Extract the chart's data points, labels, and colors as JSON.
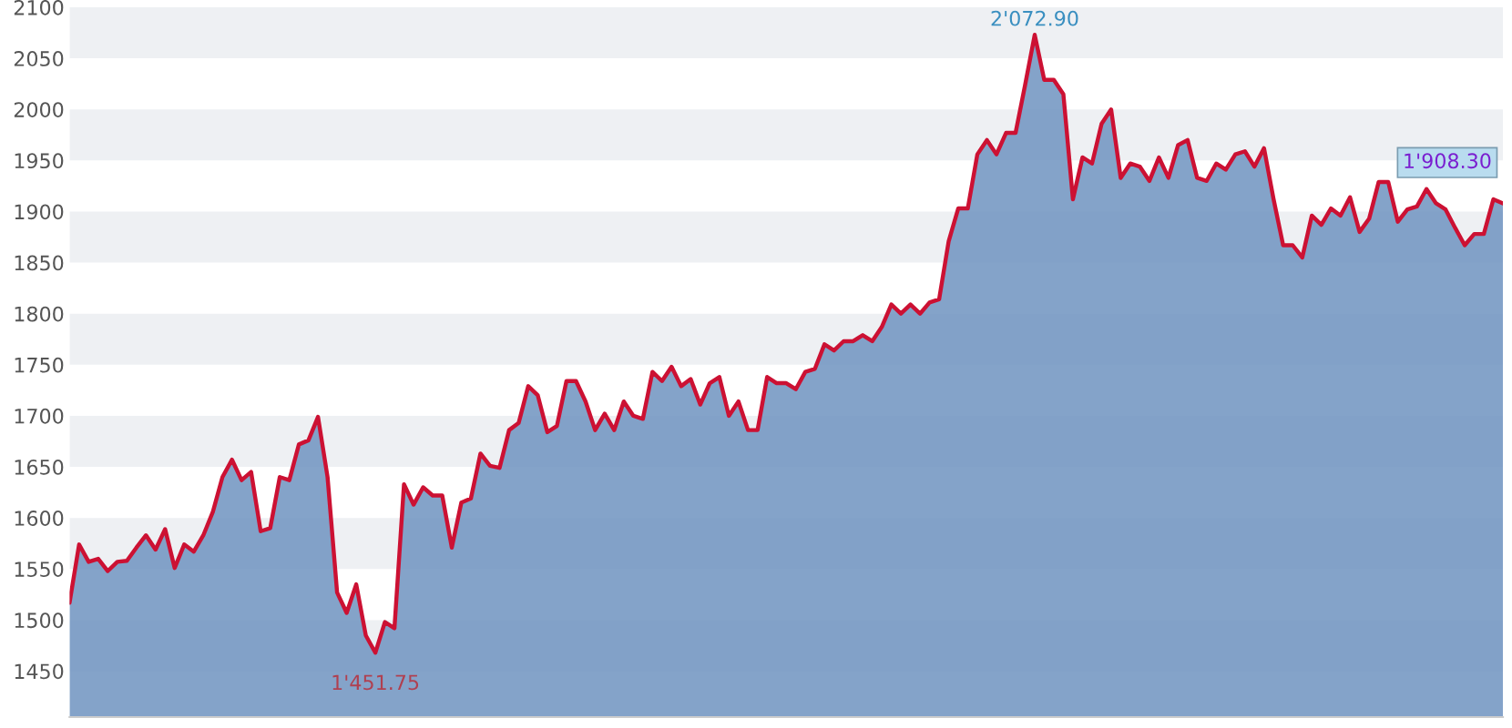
{
  "chart_data": {
    "type": "area",
    "categories": [
      null,
      null,
      null,
      null,
      null,
      null,
      null,
      null,
      null,
      null,
      null,
      null,
      null,
      null,
      null,
      null,
      null,
      null,
      null,
      null,
      null,
      null,
      null,
      null,
      null,
      null,
      null,
      null,
      null,
      null,
      null,
      null,
      null,
      null,
      null,
      null,
      null,
      null,
      null,
      null,
      null,
      null,
      null,
      null,
      null,
      null,
      null,
      null,
      null,
      null,
      null,
      null,
      null,
      null,
      null,
      null,
      null,
      null,
      null,
      null,
      null,
      null,
      null,
      null,
      null,
      null,
      null,
      null,
      null,
      null,
      null,
      null,
      null,
      null,
      null,
      null,
      null,
      null,
      null,
      null,
      null,
      null,
      null,
      null,
      null,
      null,
      null,
      null,
      null,
      null,
      null,
      null,
      null,
      null,
      null,
      null,
      null,
      null,
      null,
      null,
      null,
      null,
      null,
      null,
      null,
      null,
      null,
      null,
      null,
      null,
      null,
      null,
      null,
      null,
      null,
      null,
      null,
      null,
      null,
      null,
      null,
      null,
      null,
      null,
      null,
      null,
      null,
      null,
      null,
      null,
      null,
      null,
      null,
      null,
      null,
      null,
      null,
      null,
      null,
      null,
      null,
      null,
      null,
      null,
      null,
      null,
      null,
      null,
      null,
      null,
      null
    ],
    "series": [
      {
        "color": "#6f93bf",
        "values": [
          1517,
          1574,
          1557,
          1560,
          1548,
          1557,
          1558,
          1571,
          1583,
          1569,
          1589,
          1551,
          1574,
          1567,
          1583,
          1606,
          1640,
          1657,
          1637,
          1645,
          1587,
          1590,
          1640,
          1637,
          1672,
          1676,
          1699,
          1640,
          1527,
          1507,
          1535,
          1485,
          1468,
          1498,
          1492,
          1633,
          1613,
          1630,
          1622,
          1622,
          1571,
          1615,
          1619,
          1663,
          1651,
          1649,
          1686,
          1693,
          1729,
          1720,
          1684,
          1690,
          1734,
          1734,
          1714,
          1686,
          1702,
          1686,
          1714,
          1700,
          1697,
          1743,
          1734,
          1748,
          1729,
          1736,
          1711,
          1732,
          1738,
          1700,
          1714,
          1686,
          1686,
          1738,
          1732,
          1732,
          1726,
          1743,
          1746,
          1770,
          1764,
          1773,
          1773,
          1779,
          1773,
          1787,
          1809,
          1800,
          1809,
          1800,
          1811,
          1814,
          1871,
          1903,
          1903,
          1956,
          1970,
          1956,
          1977,
          1977,
          2024,
          2073,
          2029,
          2029,
          2015,
          1912,
          1953,
          1947,
          1986,
          2000,
          1933,
          1947,
          1944,
          1930,
          1953,
          1933,
          1965,
          1970,
          1933,
          1930,
          1947,
          1941,
          1956,
          1959,
          1944,
          1962,
          1912,
          1867,
          1867,
          1855,
          1896,
          1887,
          1903,
          1896,
          1914,
          1880,
          1893,
          1929,
          1929,
          1890,
          1902,
          1905,
          1922,
          1908,
          1902,
          1884,
          1867,
          1878,
          1878,
          1912,
          1908
        ]
      },
      {
        "type": "line",
        "color": "#cc1133",
        "values": [
          1517,
          1574,
          1557,
          1560,
          1548,
          1557,
          1558,
          1571,
          1583,
          1569,
          1589,
          1551,
          1574,
          1567,
          1583,
          1606,
          1640,
          1657,
          1637,
          1645,
          1587,
          1590,
          1640,
          1637,
          1672,
          1676,
          1699,
          1640,
          1527,
          1507,
          1535,
          1485,
          1468,
          1498,
          1492,
          1633,
          1613,
          1630,
          1622,
          1622,
          1571,
          1615,
          1619,
          1663,
          1651,
          1649,
          1686,
          1693,
          1729,
          1720,
          1684,
          1690,
          1734,
          1734,
          1714,
          1686,
          1702,
          1686,
          1714,
          1700,
          1697,
          1743,
          1734,
          1748,
          1729,
          1736,
          1711,
          1732,
          1738,
          1700,
          1714,
          1686,
          1686,
          1738,
          1732,
          1732,
          1726,
          1743,
          1746,
          1770,
          1764,
          1773,
          1773,
          1779,
          1773,
          1787,
          1809,
          1800,
          1809,
          1800,
          1811,
          1814,
          1871,
          1903,
          1903,
          1956,
          1970,
          1956,
          1977,
          1977,
          2024,
          2073,
          2029,
          2029,
          2015,
          1912,
          1953,
          1947,
          1986,
          2000,
          1933,
          1947,
          1944,
          1930,
          1953,
          1933,
          1965,
          1970,
          1933,
          1930,
          1947,
          1941,
          1956,
          1959,
          1944,
          1962,
          1912,
          1867,
          1867,
          1855,
          1896,
          1887,
          1903,
          1896,
          1914,
          1880,
          1893,
          1929,
          1929,
          1890,
          1902,
          1905,
          1922,
          1908,
          1902,
          1884,
          1867,
          1878,
          1878,
          1912,
          1908
        ]
      }
    ],
    "ylim": [
      1405,
      2100
    ],
    "yticks": [
      1450,
      1500,
      1550,
      1600,
      1650,
      1700,
      1750,
      1800,
      1850,
      1900,
      1950,
      2000,
      2050,
      2100
    ],
    "tick_labels": "y",
    "bands": [
      {
        "axis": "y",
        "from": 1450,
        "to": 1500,
        "color": "#eef0f3"
      },
      {
        "axis": "y",
        "from": 1550,
        "to": 1600,
        "color": "#eef0f3"
      },
      {
        "axis": "y",
        "from": 1650,
        "to": 1700,
        "color": "#eef0f3"
      },
      {
        "axis": "y",
        "from": 1750,
        "to": 1800,
        "color": "#eef0f3"
      },
      {
        "axis": "y",
        "from": 1850,
        "to": 1900,
        "color": "#eef0f3"
      },
      {
        "axis": "y",
        "from": 1950,
        "to": 2000,
        "color": "#eef0f3"
      },
      {
        "axis": "y",
        "from": 2050,
        "to": 2100,
        "color": "#eef0f3"
      }
    ],
    "annotations": [
      {
        "text": "2'072.90",
        "y": 2072.9
      },
      {
        "text": "1'451.75",
        "y": 1451.75
      },
      {
        "text": "1'908.30",
        "y": 1908.3
      }
    ]
  }
}
